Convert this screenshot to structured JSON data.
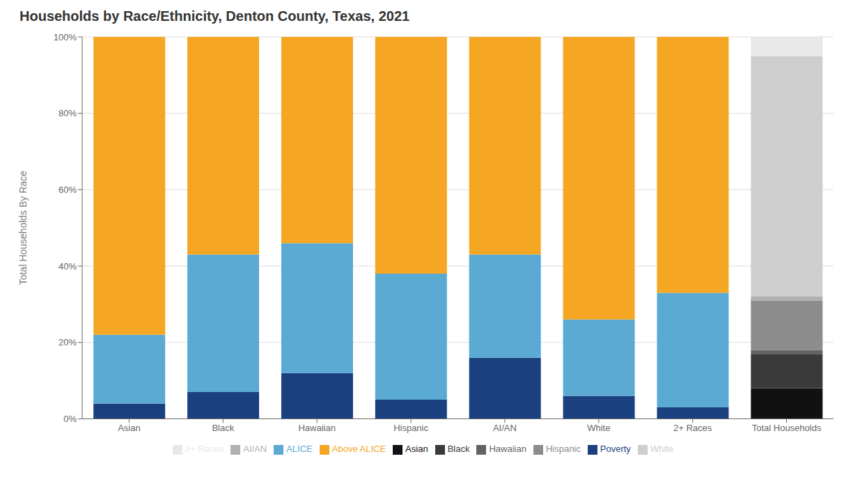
{
  "chart_data": {
    "type": "bar",
    "title": "Households by Race/Ethnicity, Denton County, Texas, 2021",
    "y_label": "Total Households By Race",
    "stacked": true,
    "grid": true,
    "legend": "bottom",
    "categories": [
      "Asian",
      "Black",
      "Hawaiian",
      "Hispanic",
      "AI/AN",
      "White",
      "2+ Races",
      "Total Households"
    ],
    "series": [
      {
        "name": "Poverty",
        "color": "#1b4080",
        "values": [
          0.04,
          0.07,
          0.12,
          0.05,
          0.16,
          0.06,
          0.03,
          null
        ]
      },
      {
        "name": "ALICE",
        "color": "#5aaad4",
        "values": [
          0.18,
          0.36,
          0.34,
          0.33,
          0.27,
          0.2,
          0.3,
          null
        ]
      },
      {
        "name": "Above ALICE",
        "color": "#f5a623",
        "values": [
          0.78,
          0.57,
          0.54,
          0.62,
          0.57,
          0.74,
          0.67,
          null
        ]
      },
      {
        "name": "Asian",
        "color": "#111111",
        "values": [
          null,
          null,
          null,
          null,
          null,
          null,
          null,
          0.08
        ]
      },
      {
        "name": "Black",
        "color": "#3a3a3a",
        "values": [
          null,
          null,
          null,
          null,
          null,
          null,
          null,
          0.09
        ]
      },
      {
        "name": "Hawaiian",
        "color": "#636363",
        "values": [
          null,
          null,
          null,
          null,
          null,
          null,
          null,
          0.01
        ]
      },
      {
        "name": "Hispanic",
        "color": "#8c8c8c",
        "values": [
          null,
          null,
          null,
          null,
          null,
          null,
          null,
          0.13
        ]
      },
      {
        "name": "AI/AN",
        "color": "#b0b0b0",
        "values": [
          null,
          null,
          null,
          null,
          null,
          null,
          null,
          0.01
        ]
      },
      {
        "name": "White",
        "color": "#cecece",
        "values": [
          null,
          null,
          null,
          null,
          null,
          null,
          null,
          0.63
        ]
      },
      {
        "name": "2+ Races",
        "color": "#e8e8e8",
        "values": [
          null,
          null,
          null,
          null,
          null,
          null,
          null,
          0.05
        ]
      }
    ],
    "ylim": [
      0,
      1.0
    ],
    "yticks": [
      {
        "value": 0,
        "label": "0%"
      },
      {
        "value": 0.2,
        "label": "20%"
      },
      {
        "value": 0.4,
        "label": "40%"
      },
      {
        "value": 0.6,
        "label": "60%"
      },
      {
        "value": 0.8,
        "label": "80%"
      },
      {
        "value": 1.0,
        "label": "100%"
      }
    ]
  }
}
